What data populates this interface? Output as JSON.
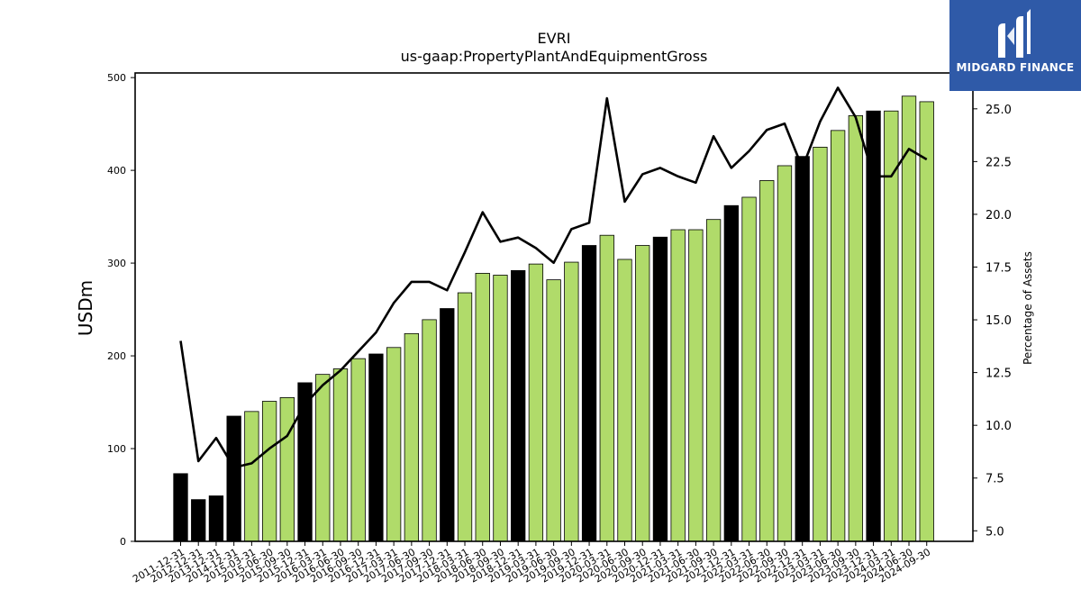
{
  "chart_data": {
    "type": "bar",
    "title": "EVRI",
    "subtitle": "us-gaap:PropertyPlantAndEquipmentGross",
    "ylabel": "USDm",
    "y2label": "Percentage of Assets",
    "ylim": [
      0,
      505
    ],
    "y2lim": [
      4.5,
      26.7
    ],
    "yticks": [
      0,
      100,
      200,
      300,
      400,
      500
    ],
    "y2ticks": [
      "5.0",
      "7.5",
      "10.0",
      "12.5",
      "15.0",
      "17.5",
      "20.0",
      "22.5",
      "25.0"
    ],
    "categories": [
      "2011-12-31",
      "2012-12-31",
      "2013-12-31",
      "2014-12-31",
      "2015-03-31",
      "2015-06-30",
      "2015-09-30",
      "2015-12-31",
      "2016-03-31",
      "2016-06-30",
      "2016-09-30",
      "2016-12-31",
      "2017-03-31",
      "2017-06-30",
      "2017-09-30",
      "2017-12-31",
      "2018-03-31",
      "2018-06-30",
      "2018-09-30",
      "2018-12-31",
      "2019-03-31",
      "2019-06-30",
      "2019-09-30",
      "2019-12-31",
      "2020-03-31",
      "2020-06-30",
      "2020-09-30",
      "2020-12-31",
      "2021-03-31",
      "2021-06-30",
      "2021-09-30",
      "2021-12-31",
      "2022-03-31",
      "2022-06-30",
      "2022-09-30",
      "2022-12-31",
      "2023-03-31",
      "2023-06-30",
      "2023-09-30",
      "2023-12-31",
      "2024-03-31",
      "2024-06-30",
      "2024-09-30"
    ],
    "series": [
      {
        "kind": "bar",
        "values": [
          73,
          45,
          49,
          135,
          140,
          151,
          155,
          171,
          180,
          186,
          197,
          202,
          209,
          224,
          239,
          251,
          268,
          289,
          287,
          292,
          299,
          282,
          301,
          319,
          330,
          304,
          319,
          328,
          336,
          336,
          347,
          362,
          371,
          389,
          405,
          415,
          425,
          443,
          459,
          464,
          464,
          480,
          474
        ],
        "annual": [
          true,
          true,
          true,
          true,
          false,
          false,
          false,
          true,
          false,
          false,
          false,
          true,
          false,
          false,
          false,
          true,
          false,
          false,
          false,
          true,
          false,
          false,
          false,
          true,
          false,
          false,
          false,
          true,
          false,
          false,
          false,
          true,
          false,
          false,
          false,
          true,
          false,
          false,
          false,
          true,
          false,
          false,
          false
        ]
      },
      {
        "kind": "line",
        "axis": "right",
        "values": [
          14.0,
          8.3,
          9.4,
          8.0,
          8.2,
          8.9,
          9.5,
          11.0,
          11.9,
          12.6,
          13.5,
          14.4,
          15.8,
          16.8,
          16.8,
          16.4,
          18.2,
          20.1,
          18.7,
          18.9,
          18.4,
          17.7,
          19.3,
          19.6,
          25.5,
          20.6,
          21.9,
          22.2,
          21.8,
          21.5,
          23.7,
          22.2,
          23.0,
          24.0,
          24.3,
          22.2,
          24.4,
          26.0,
          24.6,
          21.8,
          21.8,
          23.1,
          22.6
        ]
      }
    ],
    "colors": {
      "bar_quarter": "#b0db6a",
      "bar_annual": "#000000",
      "line": "#000000",
      "bar_edge": "#000000"
    }
  },
  "logo": {
    "text": "MIDGARD FINANCE",
    "icon": "midgard-logo-icon",
    "bg": "#2f5aa8"
  }
}
